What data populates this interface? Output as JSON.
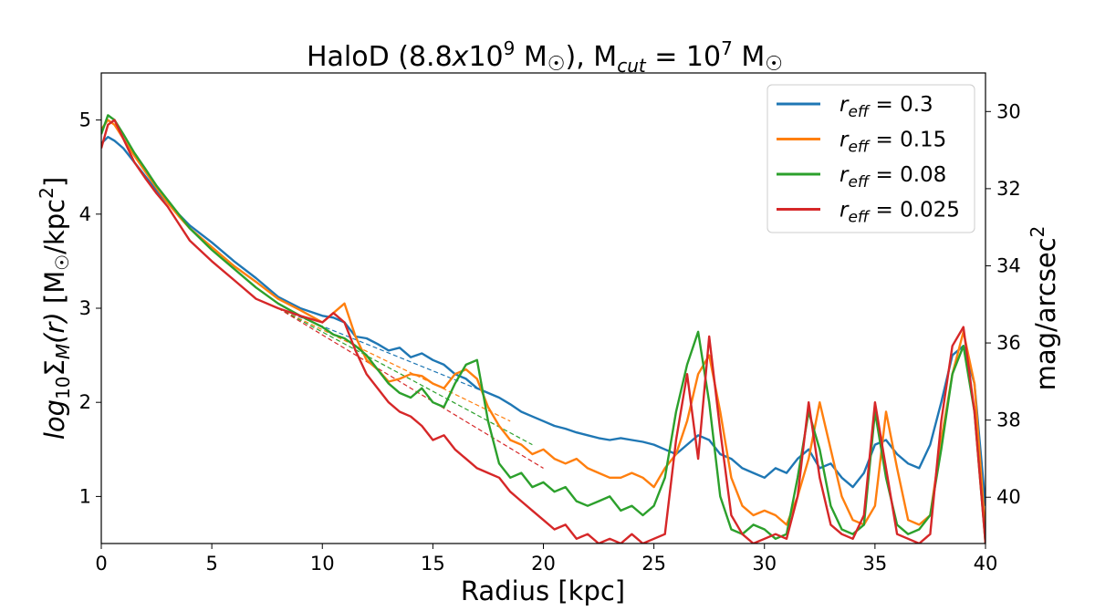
{
  "chart_data": {
    "type": "line",
    "title": "HaloD (8.8x10⁹ M☉), Mcut = 10⁷ M☉",
    "title_parts": {
      "pre": "HaloD (8.8",
      "x": "x",
      "base": "10",
      "exp": "9",
      "msun": "M",
      "sun_symbol": "☉",
      "mid": "), M",
      "cut": "cut",
      "eq": " = 10",
      "exp2": "7",
      "msun2": " M"
    },
    "xlabel": "Radius [kpc]",
    "ylabel_parts": {
      "log": "log",
      "sub10": "10",
      "sigma": "Σ",
      "subM": "M",
      "r": "(r)",
      "unit_pre": " [M",
      "unit_post": "/kpc",
      "sq": "2",
      "close": "]"
    },
    "ylabel_right_parts": {
      "text": "mag/arcsec",
      "sq": "2"
    },
    "xlim": [
      0,
      40
    ],
    "ylim": [
      0.5,
      5.5
    ],
    "xticks": [
      "0",
      "5",
      "10",
      "15",
      "20",
      "25",
      "30",
      "35",
      "40"
    ],
    "yticks": [
      "1",
      "2",
      "3",
      "4",
      "5"
    ],
    "right_axis": {
      "ylim": [
        29,
        41.2
      ],
      "ticks": [
        "30",
        "32",
        "34",
        "36",
        "38",
        "40"
      ],
      "inverted": true
    },
    "legend_position": "top-right",
    "series": [
      {
        "name": "r_eff = 0.3",
        "legend_var": "r",
        "legend_sub": "eff",
        "legend_val": "= 0.3",
        "color": "#1f77b4",
        "x": [
          0.0,
          0.3,
          0.6,
          1,
          1.5,
          2,
          2.5,
          3,
          3.5,
          4,
          5,
          6,
          7,
          8,
          9,
          10,
          10.5,
          11,
          11.5,
          12,
          12.5,
          13,
          13.5,
          14,
          14.5,
          15,
          15.5,
          16,
          16.5,
          17,
          17.5,
          18,
          18.5,
          19,
          19.5,
          20,
          20.5,
          21,
          21.5,
          22,
          22.5,
          23,
          23.5,
          24,
          24.5,
          25,
          25.5,
          26,
          26.5,
          27,
          27.5,
          28,
          28.5,
          29,
          29.5,
          30,
          30.5,
          31,
          31.5,
          32,
          32.5,
          33,
          33.5,
          34,
          34.5,
          35,
          35.5,
          36,
          36.5,
          37,
          37.5,
          38,
          38.5,
          39,
          39.5,
          40
        ],
        "y": [
          4.75,
          4.82,
          4.78,
          4.7,
          4.55,
          4.4,
          4.25,
          4.12,
          4.0,
          3.88,
          3.7,
          3.5,
          3.32,
          3.12,
          3.0,
          2.92,
          2.9,
          2.85,
          2.7,
          2.68,
          2.62,
          2.55,
          2.58,
          2.48,
          2.52,
          2.45,
          2.4,
          2.3,
          2.25,
          2.15,
          2.1,
          2.05,
          1.98,
          1.9,
          1.85,
          1.8,
          1.75,
          1.72,
          1.68,
          1.65,
          1.62,
          1.6,
          1.62,
          1.6,
          1.58,
          1.55,
          1.5,
          1.45,
          1.55,
          1.65,
          1.6,
          1.45,
          1.4,
          1.3,
          1.25,
          1.2,
          1.3,
          1.25,
          1.4,
          1.5,
          1.3,
          1.35,
          1.2,
          1.1,
          1.25,
          1.55,
          1.6,
          1.45,
          1.35,
          1.3,
          1.55,
          2.0,
          2.5,
          2.6,
          2.2,
          0.9
        ]
      },
      {
        "name": "r_eff = 0.15",
        "legend_var": "r",
        "legend_sub": "eff",
        "legend_val": "= 0.15",
        "color": "#ff7f0e",
        "x": [
          0.0,
          0.3,
          0.6,
          1,
          1.5,
          2,
          2.5,
          3,
          3.5,
          4,
          5,
          6,
          7,
          8,
          9,
          10,
          10.5,
          11,
          11.5,
          12,
          12.5,
          13,
          13.5,
          14,
          14.5,
          15,
          15.5,
          16,
          16.5,
          17,
          17.5,
          18,
          18.5,
          19,
          19.5,
          20,
          20.5,
          21,
          21.5,
          22,
          22.5,
          23,
          23.5,
          24,
          24.5,
          25,
          25.5,
          26,
          26.5,
          27,
          27.5,
          28,
          28.5,
          29,
          29.5,
          30,
          30.5,
          31,
          31.5,
          32,
          32.5,
          33,
          33.5,
          34,
          34.5,
          35,
          35.5,
          36,
          36.5,
          37,
          37.5,
          38,
          38.5,
          39,
          39.5,
          40
        ],
        "y": [
          4.9,
          5.0,
          4.95,
          4.8,
          4.62,
          4.45,
          4.28,
          4.12,
          3.98,
          3.85,
          3.65,
          3.45,
          3.28,
          3.1,
          2.98,
          2.85,
          2.95,
          3.05,
          2.7,
          2.45,
          2.35,
          2.22,
          2.25,
          2.3,
          2.28,
          2.2,
          2.15,
          2.3,
          2.35,
          2.25,
          1.95,
          1.75,
          1.6,
          1.55,
          1.45,
          1.5,
          1.4,
          1.35,
          1.4,
          1.3,
          1.25,
          1.2,
          1.2,
          1.25,
          1.2,
          1.1,
          1.3,
          1.45,
          1.8,
          2.3,
          2.5,
          1.9,
          1.2,
          0.9,
          0.8,
          0.85,
          0.8,
          0.7,
          1.0,
          1.4,
          2.0,
          1.5,
          1.0,
          0.75,
          0.7,
          0.9,
          1.9,
          1.3,
          0.75,
          0.7,
          0.8,
          1.6,
          2.3,
          2.75,
          2.2,
          0.6
        ]
      },
      {
        "name": "r_eff = 0.08",
        "legend_var": "r",
        "legend_sub": "eff",
        "legend_val": "= 0.08",
        "color": "#2ca02c",
        "x": [
          0.0,
          0.3,
          0.6,
          1,
          1.5,
          2,
          2.5,
          3,
          3.5,
          4,
          5,
          6,
          7,
          8,
          9,
          10,
          10.5,
          11,
          11.5,
          12,
          12.5,
          13,
          13.5,
          14,
          14.5,
          15,
          15.5,
          16,
          16.5,
          17,
          17.5,
          18,
          18.5,
          19,
          19.5,
          20,
          20.5,
          21,
          21.5,
          22,
          22.5,
          23,
          23.5,
          24,
          24.5,
          25,
          25.5,
          26,
          26.5,
          27,
          27.5,
          28,
          28.5,
          29,
          29.5,
          30,
          30.5,
          31,
          31.5,
          32,
          32.5,
          33,
          33.5,
          34,
          34.5,
          35,
          35.5,
          36,
          36.5,
          37,
          37.5,
          38,
          38.5,
          39,
          39.5,
          40
        ],
        "y": [
          4.85,
          5.05,
          5.0,
          4.85,
          4.65,
          4.48,
          4.3,
          4.15,
          4.0,
          3.85,
          3.62,
          3.42,
          3.22,
          3.05,
          2.92,
          2.8,
          2.72,
          2.68,
          2.6,
          2.5,
          2.35,
          2.2,
          2.1,
          2.05,
          2.15,
          2.0,
          1.95,
          2.2,
          2.4,
          2.45,
          1.8,
          1.35,
          1.2,
          1.25,
          1.1,
          1.15,
          1.05,
          1.1,
          0.95,
          0.9,
          0.95,
          1.0,
          0.85,
          0.9,
          0.8,
          0.9,
          1.2,
          1.9,
          2.4,
          2.75,
          2.0,
          1.0,
          0.65,
          0.6,
          0.7,
          0.65,
          0.55,
          0.6,
          1.2,
          1.9,
          1.5,
          0.9,
          0.65,
          0.6,
          0.7,
          1.9,
          1.2,
          0.7,
          0.6,
          0.65,
          0.8,
          1.5,
          2.3,
          2.6,
          1.9,
          0.5
        ]
      },
      {
        "name": "r_eff = 0.025",
        "legend_var": "r",
        "legend_sub": "eff",
        "legend_val": "= 0.025",
        "color": "#d62728",
        "x": [
          0.0,
          0.3,
          0.6,
          1,
          1.5,
          2,
          2.5,
          3,
          3.5,
          4,
          5,
          6,
          7,
          8,
          9,
          10,
          10.5,
          11,
          11.5,
          12,
          12.5,
          13,
          13.5,
          14,
          14.5,
          15,
          15.5,
          16,
          16.5,
          17,
          17.5,
          18,
          18.5,
          19,
          19.5,
          20,
          20.5,
          21,
          21.5,
          22,
          22.5,
          23,
          23.5,
          24,
          24.5,
          25,
          25.5,
          26,
          26.5,
          27,
          27.5,
          28,
          28.5,
          29,
          29.5,
          30,
          30.5,
          31,
          31.5,
          32,
          32.5,
          33,
          33.5,
          34,
          34.5,
          35,
          35.5,
          36,
          36.5,
          37,
          37.5,
          38,
          38.5,
          39,
          39.5,
          40
        ],
        "y": [
          4.7,
          4.95,
          5.0,
          4.8,
          4.55,
          4.38,
          4.22,
          4.08,
          3.9,
          3.72,
          3.5,
          3.3,
          3.1,
          3.0,
          2.92,
          2.85,
          2.95,
          2.85,
          2.55,
          2.3,
          2.15,
          2.0,
          1.9,
          1.85,
          1.75,
          1.6,
          1.65,
          1.5,
          1.4,
          1.3,
          1.25,
          1.2,
          1.05,
          0.95,
          0.85,
          0.75,
          0.65,
          0.7,
          0.55,
          0.6,
          0.5,
          0.55,
          0.5,
          0.6,
          0.5,
          0.55,
          0.6,
          1.6,
          2.3,
          1.4,
          2.7,
          1.7,
          0.8,
          0.6,
          0.5,
          0.55,
          0.6,
          0.55,
          1.0,
          2.0,
          1.2,
          0.7,
          0.6,
          0.55,
          0.8,
          2.0,
          1.3,
          0.6,
          0.55,
          0.5,
          0.6,
          1.8,
          2.6,
          2.8,
          1.9,
          0.5
        ]
      }
    ],
    "fit_lines": [
      {
        "color": "#1f77b4",
        "x": [
          8,
          18
        ],
        "y": [
          3.0,
          2.05
        ]
      },
      {
        "color": "#ff7f0e",
        "x": [
          8,
          18.5
        ],
        "y": [
          3.0,
          1.8
        ]
      },
      {
        "color": "#2ca02c",
        "x": [
          8,
          19.5
        ],
        "y": [
          3.0,
          1.55
        ]
      },
      {
        "color": "#d62728",
        "x": [
          8,
          20
        ],
        "y": [
          3.0,
          1.3
        ]
      }
    ]
  }
}
